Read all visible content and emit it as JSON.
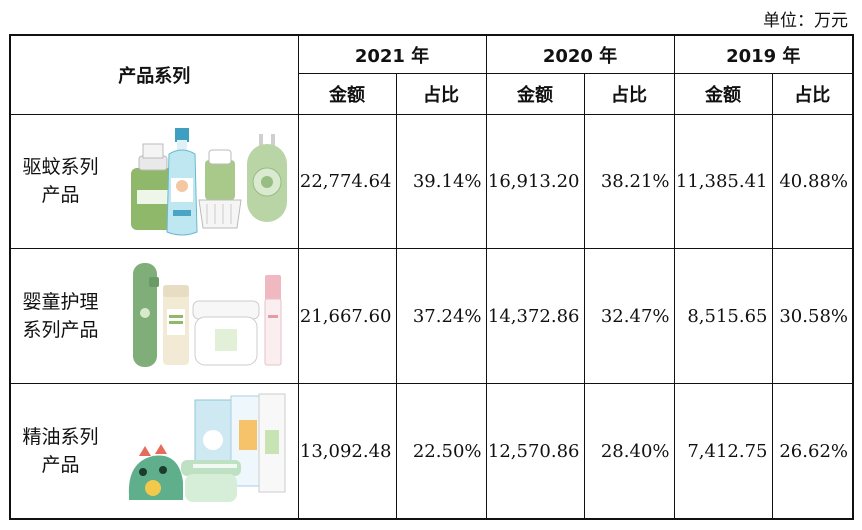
{
  "unit_label": "单位：万元",
  "header": {
    "category": "产品系列",
    "years": [
      {
        "year": "2021 年",
        "amount": "金额",
        "ratio": "占比"
      },
      {
        "year": "2020 年",
        "amount": "金额",
        "ratio": "占比"
      },
      {
        "year": "2019 年",
        "amount": "金额",
        "ratio": "占比"
      }
    ]
  },
  "rows": [
    {
      "name_lines": [
        "驱蚊系列",
        "产品"
      ],
      "image_icon": "mosquito-repellent-products-image",
      "values": [
        {
          "amount": "22,774.64",
          "ratio": "39.14%"
        },
        {
          "amount": "16,913.20",
          "ratio": "38.21%"
        },
        {
          "amount": "11,385.41",
          "ratio": "40.88%"
        }
      ]
    },
    {
      "name_lines": [
        "婴童护理",
        "系列产品"
      ],
      "image_icon": "baby-care-products-image",
      "values": [
        {
          "amount": "21,667.60",
          "ratio": "37.24%"
        },
        {
          "amount": "14,372.86",
          "ratio": "32.47%"
        },
        {
          "amount": "8,515.65",
          "ratio": "30.58%"
        }
      ]
    },
    {
      "name_lines": [
        "精油系列",
        "产品"
      ],
      "image_icon": "essential-oil-products-image",
      "values": [
        {
          "amount": "13,092.48",
          "ratio": "22.50%"
        },
        {
          "amount": "12,570.86",
          "ratio": "28.40%"
        },
        {
          "amount": "7,412.75",
          "ratio": "26.62%"
        }
      ]
    }
  ],
  "colors": {
    "green_product": "#8fb86a",
    "teal_product": "#45a6b0",
    "mint_product": "#cfe6c8",
    "pink_product": "#f0b8c0"
  }
}
